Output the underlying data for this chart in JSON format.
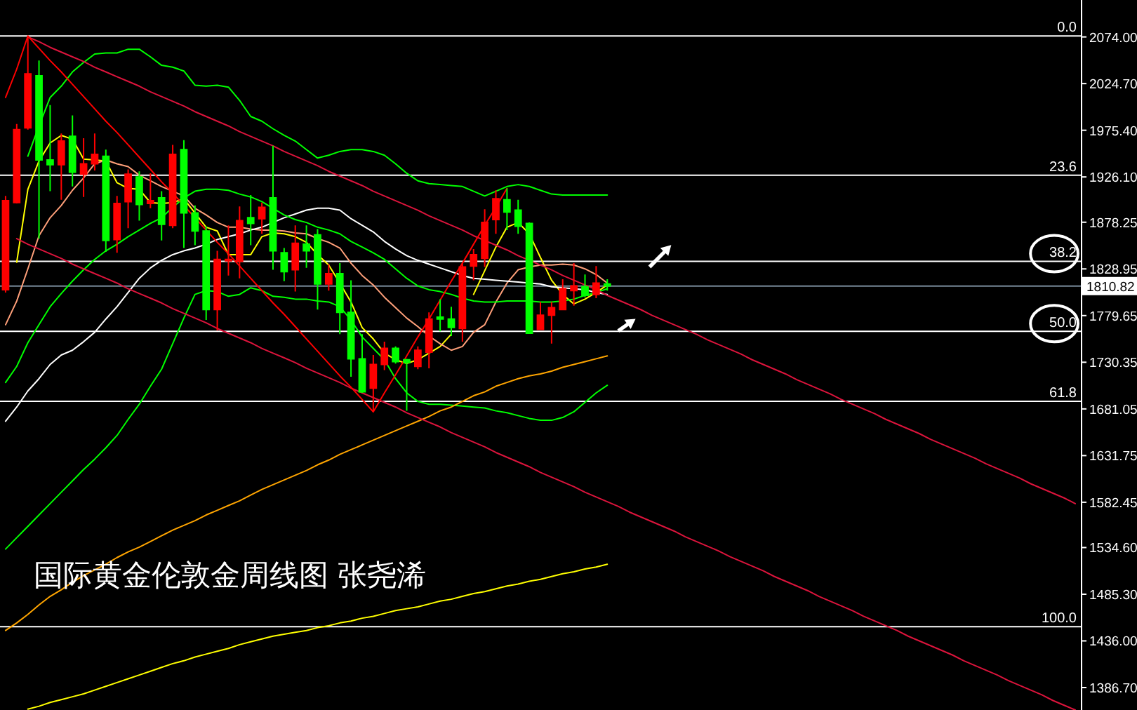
{
  "chart_data": {
    "type": "candlestick",
    "categories": [
      null,
      null,
      null,
      null,
      null,
      null,
      null,
      null,
      null,
      null,
      null,
      null,
      null,
      null,
      null,
      null,
      null,
      null,
      null,
      null,
      null,
      null,
      null,
      null,
      null,
      null,
      null,
      null,
      null,
      null,
      null,
      null,
      null,
      null,
      null,
      null,
      null,
      null,
      null,
      null,
      null,
      null,
      null,
      null,
      null,
      null,
      null,
      null,
      null,
      null,
      null,
      null,
      null,
      null,
      null,
      null,
      null,
      null,
      null,
      null,
      null,
      null,
      null,
      null,
      null,
      null,
      null,
      null,
      null,
      null,
      null,
      null,
      null,
      null,
      null,
      null,
      null,
      null,
      null,
      null,
      null,
      null,
      null,
      null,
      null,
      null,
      null,
      null,
      null,
      null,
      null,
      null,
      null,
      null,
      null,
      null,
      null
    ],
    "ohlc": [
      [
        1807,
        1906,
        1804,
        1901
      ],
      [
        1899,
        1982,
        1898,
        1976
      ],
      [
        1978,
        2075,
        1976,
        2035
      ],
      [
        2033,
        2049,
        1861,
        1944
      ],
      [
        1944,
        2002,
        1911,
        1939
      ],
      [
        1939,
        1972,
        1902,
        1964
      ],
      [
        1969,
        1991,
        1916,
        1931
      ],
      [
        1929,
        1967,
        1905,
        1940
      ],
      [
        1940,
        1972,
        1933,
        1950
      ],
      [
        1948,
        1955,
        1847,
        1859
      ],
      [
        1860,
        1906,
        1846,
        1898
      ],
      [
        1900,
        1934,
        1872,
        1929
      ],
      [
        1926,
        1932,
        1880,
        1897
      ],
      [
        1898,
        1930,
        1893,
        1901
      ],
      [
        1904,
        1911,
        1859,
        1876
      ],
      [
        1875,
        1960,
        1872,
        1950
      ],
      [
        1955,
        1965,
        1851,
        1888
      ],
      [
        1888,
        1896,
        1854,
        1869
      ],
      [
        1869,
        1874,
        1775,
        1786
      ],
      [
        1786,
        1848,
        1764,
        1839
      ],
      [
        1838,
        1875,
        1822,
        1839
      ],
      [
        1837,
        1895,
        1819,
        1880
      ],
      [
        1883,
        1907,
        1854,
        1877
      ],
      [
        1882,
        1899,
        1866,
        1894
      ],
      [
        1904,
        1959,
        1828,
        1848
      ],
      [
        1846,
        1851,
        1816,
        1826
      ],
      [
        1828,
        1875,
        1805,
        1856
      ],
      [
        1855,
        1875,
        1830,
        1848
      ],
      [
        1865,
        1871,
        1786,
        1813
      ],
      [
        1813,
        1834,
        1806,
        1824
      ],
      [
        1824,
        1835,
        1760,
        1783
      ],
      [
        1783,
        1817,
        1715,
        1734
      ],
      [
        1734,
        1760,
        1698,
        1699
      ],
      [
        1703,
        1738,
        1678,
        1728
      ],
      [
        1728,
        1752,
        1722,
        1745
      ],
      [
        1745,
        1747,
        1729,
        1731
      ],
      [
        1733,
        1734,
        1679,
        1730
      ],
      [
        1726,
        1747,
        1723,
        1743
      ],
      [
        1741,
        1783,
        1724,
        1776
      ],
      [
        1778,
        1797,
        1763,
        1776
      ],
      [
        1776,
        1789,
        1758,
        1767
      ],
      [
        1766,
        1835,
        1752,
        1831
      ],
      [
        1832,
        1850,
        1817,
        1844
      ],
      [
        1840,
        1892,
        1831,
        1878
      ],
      [
        1881,
        1912,
        1866,
        1903
      ],
      [
        1902,
        1914,
        1870,
        1889
      ],
      [
        1891,
        1902,
        1866,
        1874
      ],
      [
        1877,
        1878,
        1761,
        1761
      ],
      [
        1765,
        1794,
        1765,
        1780
      ],
      [
        1780,
        1794,
        1750,
        1788
      ],
      [
        1786,
        1818,
        1786,
        1808
      ],
      [
        1806,
        1835,
        1790,
        1811
      ],
      [
        1810,
        1823,
        1799,
        1801
      ],
      [
        1802,
        1832,
        1798,
        1814
      ],
      [
        1813,
        1818,
        1806,
        1811
      ],
      null,
      null,
      null,
      null,
      null,
      null,
      null,
      null,
      null,
      null,
      null,
      null,
      null,
      null,
      null,
      null,
      null,
      null,
      null,
      null,
      null,
      null,
      null,
      null,
      null,
      null,
      null,
      null,
      null,
      null,
      null,
      null,
      null,
      null,
      null,
      null,
      null,
      null,
      null,
      null,
      null,
      null
    ],
    "colors": [
      "#ff0000",
      "#ff0000",
      "#ff0000",
      "#00ff00",
      "#00ff00",
      "#ff0000",
      "#00ff00",
      "#ff0000",
      "#ff0000",
      "#00ff00",
      "#ff0000",
      "#ff0000",
      "#00ff00",
      "#ff0000",
      "#00ff00",
      "#ff0000",
      "#00ff00",
      "#00ff00",
      "#00ff00",
      "#ff0000",
      "#ff0000",
      "#ff0000",
      "#00ff00",
      "#ff0000",
      "#00ff00",
      "#00ff00",
      "#ff0000",
      "#00ff00",
      "#00ff00",
      "#ff0000",
      "#00ff00",
      "#00ff00",
      "#00ff00",
      "#ff0000",
      "#ff0000",
      "#00ff00",
      "#00ff00",
      "#ff0000",
      "#ff0000",
      "#00ff00",
      "#00ff00",
      "#ff0000",
      "#ff0000",
      "#ff0000",
      "#ff0000",
      "#00ff00",
      "#00ff00",
      "#00ff00",
      "#ff0000",
      "#ff0000",
      "#ff0000",
      "#ff0000",
      "#00ff00",
      "#ff0000",
      "#00ff00",
      null,
      null,
      null,
      null,
      null,
      null,
      null,
      null,
      null,
      null,
      null,
      null,
      null,
      null,
      null,
      null,
      null,
      null,
      null,
      null,
      null,
      null,
      null,
      null,
      null,
      null,
      null,
      null,
      null,
      null,
      null,
      null,
      null,
      null,
      null,
      null,
      null,
      null,
      null,
      null,
      null,
      null
    ],
    "series": [
      {
        "type": "line",
        "color": "#ffff00",
        "values": [
          null,
          1836,
          1913,
          1943,
          1962,
          1970,
          1966,
          1945,
          1944,
          1943,
          1920,
          1914,
          1913,
          1899,
          1898,
          1899,
          1903,
          1888,
          1873,
          1869,
          1844,
          1844,
          1844,
          1863,
          1867,
          1866,
          1863,
          1857,
          1844,
          1833,
          1814,
          1794,
          1767,
          1755,
          1740,
          1733,
          1729,
          1733,
          1740,
          1747,
          1760,
          null,
          1802,
          1827,
          1852,
          1873,
          1878,
          1866,
          1841,
          1817,
          1802,
          1792,
          1797,
          1804,
          1812,
          null,
          null,
          null,
          null,
          null,
          null,
          null,
          null,
          null,
          null,
          null,
          null,
          null,
          null,
          null,
          null,
          null,
          null,
          null,
          null,
          null,
          null,
          null,
          null,
          null,
          null,
          null,
          null,
          null,
          null,
          null,
          null,
          null,
          null,
          null,
          null,
          null,
          null,
          null,
          null,
          null,
          null
        ]
      },
      {
        "type": "line",
        "color": "#ffa07a",
        "values": [
          1770,
          1795,
          1829,
          1864,
          1883,
          1896,
          1912,
          1925,
          1940,
          1944,
          1940,
          1937,
          1928,
          1922,
          1916,
          1911,
          1906,
          1893,
          1886,
          1878,
          1873,
          1873,
          1871,
          1870,
          1870,
          1869,
          1867,
          1866,
          1861,
          1857,
          1851,
          1835,
          1822,
          1812,
          1799,
          1788,
          1777,
          1768,
          1758,
          1750,
          1743,
          1747,
          1762,
          1770,
          1794,
          1814,
          1828,
          1831,
          1833,
          1833,
          1834,
          1833,
          1829,
          1823,
          1814,
          null,
          null,
          null,
          null,
          null,
          null,
          null,
          null,
          null,
          null,
          null,
          null,
          null,
          null,
          null,
          null,
          null,
          null,
          null,
          null,
          null,
          null,
          null,
          null,
          null,
          null,
          null,
          null,
          null,
          null,
          null,
          null,
          null,
          null,
          null,
          null,
          null,
          null,
          null,
          null,
          null,
          null
        ]
      },
      {
        "type": "line",
        "color": "#ffffff",
        "values": [
          1668,
          1683,
          1700,
          1713,
          1728,
          1738,
          1743,
          1752,
          1762,
          1776,
          1789,
          1804,
          1819,
          1830,
          1838,
          1844,
          1848,
          1851,
          1855,
          1860,
          1863,
          1866,
          1870,
          1873,
          1878,
          1883,
          1887,
          1891,
          1893,
          1893,
          1891,
          1882,
          1875,
          1868,
          1858,
          1850,
          1843,
          1838,
          1834,
          1830,
          1826,
          1822,
          1819,
          1818,
          1817,
          1816,
          1815,
          1814,
          1813,
          1810,
          1809,
          1808,
          1807,
          1804,
          1802,
          null,
          null,
          null,
          null,
          null,
          null,
          null,
          null,
          null,
          null,
          null,
          null,
          null,
          null,
          null,
          null,
          null,
          null,
          null,
          null,
          null,
          null,
          null,
          null,
          null,
          null,
          null,
          null,
          null,
          null,
          null,
          null,
          null,
          null,
          null,
          null,
          null,
          null,
          null,
          null,
          null,
          null
        ]
      },
      {
        "type": "line",
        "color": "#00ff00",
        "values": [
          null,
          null,
          1948,
          1980,
          2010,
          2022,
          2037,
          2047,
          2056,
          2057,
          2057,
          2061,
          2061,
          2053,
          2044,
          2042,
          2038,
          2023,
          2022,
          2023,
          2021,
          2007,
          1990,
          1985,
          1977,
          1970,
          1964,
          1955,
          1946,
          1949,
          1953,
          1955,
          1955,
          1953,
          1949,
          1940,
          1930,
          1922,
          1919,
          1918,
          1917,
          1916,
          1911,
          1906,
          1911,
          1916,
          1918,
          1916,
          1912,
          1908,
          1907,
          1907,
          1907,
          1907,
          1907,
          null,
          null,
          null,
          null,
          null,
          null,
          null,
          null,
          null,
          null,
          null,
          null,
          null,
          null,
          null,
          null,
          null,
          null,
          null,
          null,
          null,
          null,
          null,
          null,
          null,
          null,
          null,
          null,
          null,
          null,
          null,
          null,
          null,
          null,
          null,
          null,
          null,
          null,
          null,
          null,
          null,
          null
        ]
      },
      {
        "type": "line",
        "color": "#00ff00",
        "values": [
          1709,
          1726,
          1751,
          1770,
          1789,
          1803,
          1816,
          1828,
          1839,
          1848,
          1855,
          1863,
          1870,
          1877,
          1883,
          1894,
          1904,
          1911,
          1913,
          1913,
          1912,
          1908,
          1905,
          1900,
          1893,
          1886,
          1881,
          1878,
          1873,
          1870,
          1866,
          1858,
          1852,
          1846,
          1839,
          1829,
          1819,
          1811,
          1807,
          1805,
          1802,
          1798,
          1795,
          1794,
          1794,
          1795,
          1795,
          1795,
          1794,
          1794,
          1795,
          1797,
          1801,
          1804,
          1808,
          null,
          null,
          null,
          null,
          null,
          null,
          null,
          null,
          null,
          null,
          null,
          null,
          null,
          null,
          null,
          null,
          null,
          null,
          null,
          null,
          null,
          null,
          null,
          null,
          null,
          null,
          null,
          null,
          null,
          null,
          null,
          null,
          null,
          null,
          null,
          null,
          null,
          null,
          null,
          null,
          null,
          null
        ]
      },
      {
        "type": "line",
        "color": "#00ff00",
        "values": [
          1533,
          1545,
          1557,
          1569,
          1581,
          1593,
          1605,
          1617,
          1628,
          1640,
          1653,
          1670,
          1686,
          1705,
          1723,
          1750,
          1777,
          1802,
          1806,
          1805,
          1800,
          1802,
          1809,
          1806,
          1800,
          1799,
          1797,
          1797,
          1795,
          1794,
          1789,
          1775,
          1757,
          1745,
          1733,
          1713,
          1698,
          1689,
          1686,
          1686,
          1685,
          1684,
          1683,
          1682,
          1679,
          1677,
          1674,
          1671,
          1669,
          1669,
          1672,
          1678,
          1688,
          1698,
          1706,
          null,
          null,
          null,
          null,
          null,
          null,
          null,
          null,
          null,
          null,
          null,
          null,
          null,
          null,
          null,
          null,
          null,
          null,
          null,
          null,
          null,
          null,
          null,
          null,
          null,
          null,
          null,
          null,
          null,
          null,
          null,
          null,
          null,
          null,
          null,
          null,
          null,
          null,
          null,
          null,
          null,
          null
        ]
      },
      {
        "type": "line",
        "color": "#ffa500",
        "values": [
          1447,
          1455,
          1464,
          1474,
          1483,
          1490,
          1498,
          1505,
          1511,
          1517,
          1524,
          1530,
          1535,
          1541,
          1547,
          1553,
          1558,
          1563,
          1569,
          1574,
          1579,
          1584,
          1590,
          1596,
          1601,
          1606,
          1611,
          1616,
          1622,
          1627,
          1633,
          1638,
          1643,
          1648,
          1653,
          1658,
          1663,
          1668,
          1673,
          1679,
          1683,
          1689,
          1695,
          1699,
          1705,
          1709,
          1713,
          1716,
          1718,
          1721,
          1725,
          1728,
          1731,
          1734,
          1737,
          null,
          null,
          null,
          null,
          null,
          null,
          null,
          null,
          null,
          null,
          null,
          null,
          null,
          null,
          null,
          null,
          null,
          null,
          null,
          null,
          null,
          null,
          null,
          null,
          null,
          null,
          null,
          null,
          null,
          null,
          null,
          null,
          null,
          null,
          null,
          null,
          null,
          null,
          null,
          null,
          null,
          null
        ]
      },
      {
        "type": "line",
        "color": "#ffff00",
        "values": [
          null,
          null,
          1364,
          1367,
          1371,
          1374,
          1377,
          1380,
          1384,
          1388,
          1392,
          1396,
          1400,
          1404,
          1408,
          1412,
          1415,
          1419,
          1422,
          1425,
          1428,
          1432,
          1435,
          1438,
          1441,
          1443,
          1445,
          1447,
          1450,
          1452,
          1455,
          1457,
          1460,
          1462,
          1465,
          1468,
          1470,
          1472,
          1475,
          1478,
          1480,
          1483,
          1486,
          1488,
          1491,
          1494,
          1496,
          1499,
          1501,
          1504,
          1507,
          1509,
          1512,
          1514,
          1517,
          null,
          null,
          null,
          null,
          null,
          null,
          null,
          null,
          null,
          null,
          null,
          null,
          null,
          null,
          null,
          null,
          null,
          null,
          null,
          null,
          null,
          null,
          null,
          null,
          null,
          null,
          null,
          null,
          null,
          null,
          null,
          null,
          null,
          null,
          null,
          null,
          null,
          null,
          null,
          null,
          null,
          null
        ]
      },
      {
        "type": "line",
        "color": "#dc143c",
        "values": [
          null,
          null,
          2074,
          2069,
          2063,
          2058,
          2053,
          2048,
          2042,
          2037,
          2032,
          2027,
          2022,
          2016,
          2011,
          2006,
          2001,
          1995,
          1990,
          1985,
          1980,
          1974,
          1969,
          1964,
          1959,
          1953,
          1948,
          1943,
          1938,
          1932,
          1927,
          1922,
          1917,
          1911,
          1906,
          1901,
          1896,
          1891,
          1885,
          1880,
          1875,
          1870,
          1864,
          1859,
          1854,
          1849,
          1843,
          1838,
          1833,
          1828,
          1822,
          1817,
          1812,
          1807,
          1801,
          1796,
          1791,
          1786,
          1780,
          1775,
          1770,
          1765,
          1760,
          1754,
          1749,
          1744,
          1739,
          1733,
          1728,
          1723,
          1718,
          1712,
          1707,
          1702,
          1697,
          1691,
          1686,
          1681,
          1676,
          1670,
          1665,
          1660,
          1655,
          1649,
          1644,
          1639,
          1634,
          1629,
          1623,
          1618,
          1613,
          1608,
          1602,
          1597,
          1592,
          1587,
          1581
        ]
      },
      {
        "type": "line",
        "color": "#dc143c",
        "values": [
          null,
          1861,
          1855,
          1850,
          1845,
          1840,
          1834,
          1829,
          1824,
          1819,
          1814,
          1808,
          1803,
          1798,
          1793,
          1787,
          1782,
          1777,
          1772,
          1766,
          1761,
          1756,
          1751,
          1745,
          1740,
          1735,
          1730,
          1724,
          1719,
          1714,
          1709,
          1703,
          1698,
          1693,
          1688,
          1683,
          1677,
          1672,
          1667,
          1662,
          1656,
          1651,
          1646,
          1641,
          1635,
          1630,
          1625,
          1620,
          1614,
          1609,
          1604,
          1599,
          1593,
          1588,
          1583,
          1578,
          1572,
          1567,
          1562,
          1557,
          1552,
          1546,
          1541,
          1536,
          1531,
          1525,
          1520,
          1515,
          1510,
          1504,
          1499,
          1494,
          1489,
          1483,
          1478,
          1473,
          1468,
          1462,
          1457,
          1452,
          1447,
          1441,
          1436,
          1431,
          1426,
          1421,
          1415,
          1410,
          1405,
          1400,
          1394,
          1389,
          1384,
          1379,
          1373,
          1368,
          1363
        ]
      },
      {
        "type": "line",
        "color": "#ff0000",
        "values": [
          2010,
          2040,
          2075,
          2062,
          2049,
          2037,
          2024,
          2011,
          1998,
          1985,
          1973,
          1960,
          1947,
          1934,
          1921,
          1909,
          1896,
          1883,
          1870,
          1857,
          1845,
          1832,
          1819,
          1806,
          1793,
          1781,
          1768,
          1755,
          1742,
          1729,
          1716,
          1704,
          1691,
          1678,
          1698,
          1717,
          1737,
          1757,
          1776,
          1796,
          1816,
          1835,
          1855,
          1875,
          1894,
          1914,
          null,
          null,
          null,
          null,
          null,
          null,
          null,
          null,
          null,
          null,
          null,
          null,
          null,
          null,
          null,
          null,
          null,
          null,
          null,
          null,
          null,
          null,
          null,
          null,
          null,
          null,
          null,
          null,
          null,
          null,
          null,
          null,
          null,
          null,
          null,
          null,
          null,
          null,
          null,
          null,
          null,
          null,
          null,
          null,
          null,
          null,
          null,
          null,
          null,
          null,
          null
        ]
      }
    ],
    "ylim": [
      1363,
      2113
    ],
    "yticks": [
      {
        "value": 2074,
        "label": "2074.00"
      },
      {
        "value": 2024.7,
        "label": "2024.70"
      },
      {
        "value": 1975.4,
        "label": "1975.40"
      },
      {
        "value": 1926.1,
        "label": "1926.10"
      },
      {
        "value": 1878.25,
        "label": "1878.25"
      },
      {
        "value": 1828.95,
        "label": "1828.95"
      },
      {
        "value": 1779.65,
        "label": "1779.65"
      },
      {
        "value": 1730.35,
        "label": "1730.35"
      },
      {
        "value": 1681.05,
        "label": "1681.05"
      },
      {
        "value": 1631.75,
        "label": "1631.75"
      },
      {
        "value": 1582.45,
        "label": "1582.45"
      },
      {
        "value": 1534.6,
        "label": "1534.60"
      },
      {
        "value": 1485.3,
        "label": "1485.30"
      },
      {
        "value": 1436,
        "label": "1436.00"
      },
      {
        "value": 1386.7,
        "label": "1386.70"
      }
    ],
    "tick_labels": "y",
    "ref_lines": [
      {
        "axis": "y",
        "value": 2075,
        "color": "#ffffff"
      },
      {
        "axis": "y",
        "value": 1928,
        "color": "#ffffff"
      },
      {
        "axis": "y",
        "value": 1837,
        "color": "#ffffff"
      },
      {
        "axis": "y",
        "value": 1763,
        "color": "#ffffff"
      },
      {
        "axis": "y",
        "value": 1689,
        "color": "#ffffff"
      },
      {
        "axis": "y",
        "value": 1451,
        "color": "#ffffff"
      },
      {
        "axis": "y",
        "value": 1810.82,
        "label": "1810.82",
        "color": "#778899"
      }
    ],
    "annotations": [
      "国际黄金伦敦金周线图 张尧浠",
      {
        "text": "0.0",
        "y": 2075
      },
      {
        "text": "23.6",
        "y": 1928
      },
      {
        "text": "38.2",
        "y": 1837
      },
      {
        "text": "50.0",
        "y": 1763
      },
      {
        "text": "61.8",
        "y": 1689
      },
      {
        "text": "100.0",
        "y": 1451
      }
    ]
  }
}
